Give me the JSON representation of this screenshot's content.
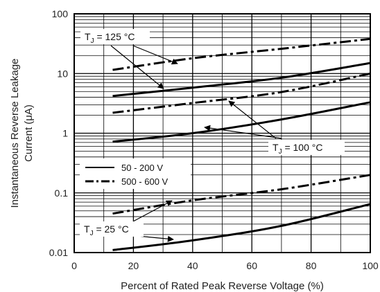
{
  "chart_data": {
    "type": "line",
    "xlabel": "Percent of Rated Peak Reverse Voltage (%)",
    "ylabel_line1": "Instantaneous Reverse Leakage",
    "ylabel_line2": "Current (μA)",
    "xlim": [
      0,
      100
    ],
    "ylim": [
      0.01,
      100
    ],
    "y_scale": "log",
    "grid": true,
    "x_ticks": [
      0,
      20,
      40,
      60,
      80,
      100
    ],
    "x_tick_labels": [
      "0",
      "20",
      "40",
      "60",
      "80",
      "100"
    ],
    "y_ticks": [
      0.01,
      0.1,
      1,
      10,
      100
    ],
    "y_tick_labels": [
      "0.01",
      "0.1",
      "1",
      "10",
      "100"
    ],
    "legend": {
      "placement": "center-left",
      "entries": [
        {
          "label": "50 - 200 V",
          "style": "solid"
        },
        {
          "label": "500 - 600 V",
          "style": "dashdot"
        }
      ]
    },
    "series": [
      {
        "group": "50 - 200 V",
        "condition": "TJ = 125 °C",
        "style": "solid",
        "x": [
          13,
          40,
          70,
          100
        ],
        "y": [
          4.2,
          5.8,
          8.5,
          15
        ]
      },
      {
        "group": "500 - 600 V",
        "condition": "TJ = 125 °C",
        "style": "dashdot",
        "x": [
          13,
          40,
          70,
          100
        ],
        "y": [
          11.5,
          18,
          26,
          38
        ]
      },
      {
        "group": "50 - 200 V",
        "condition": "TJ = 100 °C",
        "style": "solid",
        "x": [
          13,
          40,
          70,
          100
        ],
        "y": [
          0.72,
          1.0,
          1.7,
          3.3
        ]
      },
      {
        "group": "500 - 600 V",
        "condition": "TJ = 100 °C",
        "style": "dashdot",
        "x": [
          13,
          40,
          70,
          100
        ],
        "y": [
          2.2,
          3.2,
          4.9,
          10
        ]
      },
      {
        "group": "50 - 200 V",
        "condition": "TJ = 25 °C",
        "style": "solid",
        "x": [
          13,
          40,
          70,
          100
        ],
        "y": [
          0.011,
          0.016,
          0.028,
          0.065
        ]
      },
      {
        "group": "500 - 600 V",
        "condition": "TJ = 25 °C",
        "style": "dashdot",
        "x": [
          13,
          40,
          70,
          100
        ],
        "y": [
          0.045,
          0.075,
          0.115,
          0.2
        ]
      }
    ],
    "annotations": [
      {
        "main": "T",
        "sub": "J",
        "rest": " = 125 °C"
      },
      {
        "main": "T",
        "sub": "J",
        "rest": " = 100 °C"
      },
      {
        "main": "T",
        "sub": "J",
        "rest": " = 25 °C"
      }
    ]
  }
}
